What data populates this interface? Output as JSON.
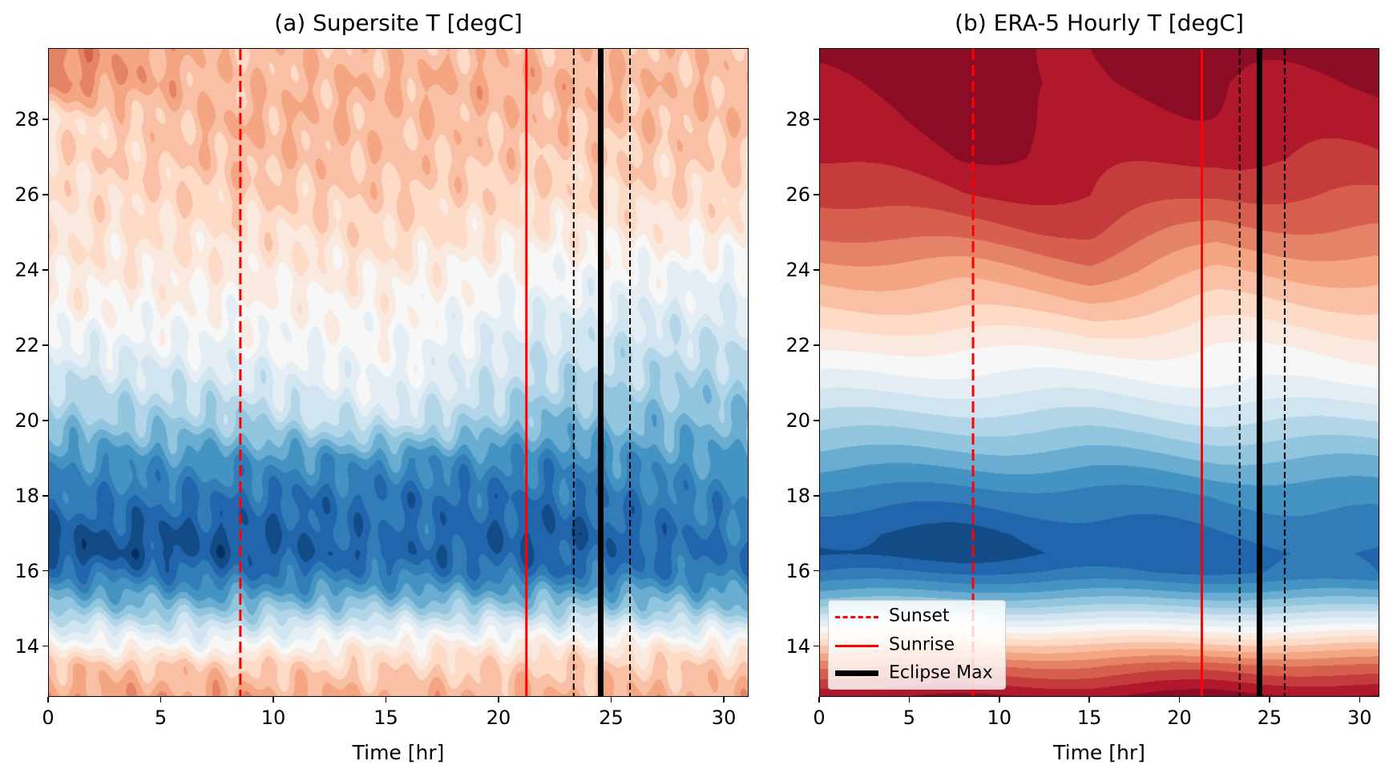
{
  "chart_data": [
    {
      "type": "heatmap",
      "subtype": "filled-contour",
      "title": "(a) Supersite T [degC]",
      "xlabel": "Time [hr]",
      "ylabel": "",
      "xlim": [
        0,
        31.1
      ],
      "ylim": [
        12.65,
        29.9
      ],
      "xticks": [
        "0",
        "5",
        "10",
        "15",
        "20",
        "25",
        "30"
      ],
      "yticks": [
        "14",
        "16",
        "18",
        "20",
        "22",
        "24",
        "26",
        "28"
      ],
      "colormap": "RdBu_r",
      "field": {
        "times": [
          0,
          8,
          15,
          22,
          31
        ],
        "heights": [
          12.7,
          13.5,
          14,
          14.5,
          15,
          15.5,
          16,
          16.5,
          17,
          18,
          19,
          20,
          21,
          22,
          23,
          24,
          25,
          26,
          27,
          28,
          29,
          29.9
        ],
        "relative_level": [
          [
            0.4,
            0.4,
            0.35,
            0.35,
            0.35
          ],
          [
            0.3,
            0.25,
            0.2,
            0.25,
            0.25
          ],
          [
            0.05,
            0.0,
            0.1,
            0.1,
            0.1
          ],
          [
            -0.15,
            -0.2,
            -0.1,
            -0.1,
            -0.15
          ],
          [
            -0.4,
            -0.4,
            -0.35,
            -0.35,
            -0.4
          ],
          [
            -0.55,
            -0.6,
            -0.55,
            -0.55,
            -0.55
          ],
          [
            -0.75,
            -0.75,
            -0.7,
            -0.75,
            -0.7
          ],
          [
            -0.9,
            -0.85,
            -0.8,
            -0.8,
            -0.75
          ],
          [
            -0.85,
            -0.85,
            -0.75,
            -0.85,
            -0.7
          ],
          [
            -0.7,
            -0.75,
            -0.75,
            -0.75,
            -0.65
          ],
          [
            -0.6,
            -0.6,
            -0.6,
            -0.65,
            -0.55
          ],
          [
            -0.4,
            -0.35,
            -0.2,
            -0.45,
            -0.45
          ],
          [
            -0.25,
            -0.2,
            -0.05,
            -0.3,
            -0.35
          ],
          [
            -0.1,
            -0.05,
            0.0,
            -0.2,
            -0.25
          ],
          [
            0.05,
            0.02,
            0.05,
            -0.1,
            -0.15
          ],
          [
            0.1,
            0.1,
            0.1,
            0.0,
            -0.05
          ],
          [
            0.15,
            0.15,
            0.2,
            0.1,
            0.1
          ],
          [
            0.15,
            0.25,
            0.25,
            0.2,
            0.2
          ],
          [
            0.2,
            0.3,
            0.3,
            0.25,
            0.25
          ],
          [
            0.15,
            0.35,
            0.3,
            0.3,
            0.3
          ],
          [
            0.5,
            0.3,
            0.35,
            0.35,
            0.3
          ],
          [
            0.5,
            0.3,
            0.3,
            0.3,
            0.3
          ]
        ]
      },
      "vlines": [
        {
          "x": 8.5,
          "style": "dashed",
          "color": "#ff0000"
        },
        {
          "x": 21.2,
          "style": "solid",
          "color": "#ff0000"
        },
        {
          "x": 23.3,
          "style": "dashed",
          "color": "#000000"
        },
        {
          "x": 24.5,
          "style": "thick",
          "color": "#000000"
        },
        {
          "x": 25.8,
          "style": "dashed",
          "color": "#000000"
        }
      ]
    },
    {
      "type": "heatmap",
      "subtype": "filled-contour",
      "title": "(b) ERA-5 Hourly T [degC]",
      "xlabel": "Time [hr]",
      "ylabel": "",
      "xlim": [
        0,
        31.1
      ],
      "ylim": [
        12.65,
        29.9
      ],
      "xticks": [
        "0",
        "5",
        "10",
        "15",
        "20",
        "25",
        "30"
      ],
      "yticks": [
        "14",
        "16",
        "18",
        "20",
        "22",
        "24",
        "26",
        "28"
      ],
      "colormap": "RdBu_r",
      "field": {
        "times": [
          0,
          8,
          15,
          22,
          31
        ],
        "heights": [
          12.7,
          13.5,
          14,
          14.5,
          15,
          15.5,
          16,
          16.5,
          17,
          18,
          19,
          20,
          21,
          22,
          23,
          24,
          25,
          26,
          27,
          28,
          29,
          29.9
        ],
        "relative_level": [
          [
            0.85,
            0.85,
            0.85,
            0.9,
            0.85
          ],
          [
            0.55,
            0.55,
            0.55,
            0.6,
            0.55
          ],
          [
            0.3,
            0.3,
            0.3,
            0.3,
            0.3
          ],
          [
            0.0,
            0.0,
            0.0,
            0.0,
            0.0
          ],
          [
            -0.3,
            -0.3,
            -0.3,
            -0.3,
            -0.3
          ],
          [
            -0.55,
            -0.55,
            -0.55,
            -0.55,
            -0.55
          ],
          [
            -0.75,
            -0.75,
            -0.75,
            -0.75,
            -0.75
          ],
          [
            -0.88,
            -0.9,
            -0.85,
            -0.8,
            -0.75
          ],
          [
            -0.85,
            -0.88,
            -0.8,
            -0.75,
            -0.7
          ],
          [
            -0.7,
            -0.7,
            -0.7,
            -0.65,
            -0.6
          ],
          [
            -0.5,
            -0.5,
            -0.5,
            -0.45,
            -0.45
          ],
          [
            -0.3,
            -0.3,
            -0.3,
            -0.25,
            -0.25
          ],
          [
            -0.1,
            -0.1,
            -0.1,
            -0.05,
            -0.05
          ],
          [
            0.1,
            0.05,
            0.1,
            0.05,
            0.1
          ],
          [
            0.25,
            0.25,
            0.3,
            0.2,
            0.25
          ],
          [
            0.4,
            0.4,
            0.5,
            0.35,
            0.4
          ],
          [
            0.55,
            0.6,
            0.65,
            0.5,
            0.55
          ],
          [
            0.65,
            0.75,
            0.75,
            0.65,
            0.65
          ],
          [
            0.75,
            0.85,
            0.8,
            0.75,
            0.75
          ],
          [
            0.8,
            0.9,
            0.82,
            0.82,
            0.8
          ],
          [
            0.85,
            0.92,
            0.85,
            0.85,
            0.85
          ],
          [
            0.9,
            0.92,
            0.85,
            0.9,
            0.88
          ]
        ]
      },
      "vlines": [
        {
          "x": 8.5,
          "style": "dashed",
          "color": "#ff0000"
        },
        {
          "x": 21.2,
          "style": "solid",
          "color": "#ff0000"
        },
        {
          "x": 23.3,
          "style": "dashed",
          "color": "#000000"
        },
        {
          "x": 24.4,
          "style": "thick",
          "color": "#000000"
        },
        {
          "x": 25.8,
          "style": "dashed",
          "color": "#000000"
        }
      ],
      "legend": {
        "position": "lower-left",
        "entries": [
          {
            "label": "Sunset",
            "style": "dashed",
            "color": "#ff0000"
          },
          {
            "label": "Sunrise",
            "style": "solid",
            "color": "#ff0000"
          },
          {
            "label": "Eclipse Max",
            "style": "thick",
            "color": "#000000"
          }
        ]
      }
    }
  ]
}
